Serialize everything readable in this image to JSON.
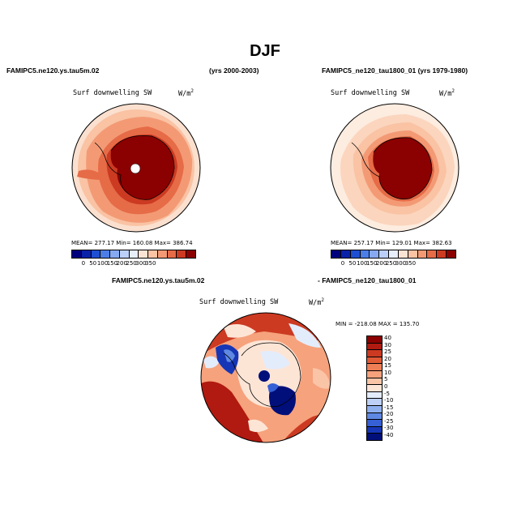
{
  "page": {
    "title": "DJF"
  },
  "left_panel": {
    "case_name": "FAMIPC5.ne120.ys.tau5m.02",
    "years": "(yrs 2000-2003)",
    "variable": "Surf downwelling SW",
    "units": "W/m",
    "units_exp": "2",
    "stats": "MEAN= 277.17   Min= 160.08   Max= 386.74",
    "colorbar_ticks": [
      "0",
      "50",
      "100",
      "150",
      "200",
      "250",
      "300",
      "350"
    ]
  },
  "right_panel": {
    "case_name": "FAMIPC5_ne120_tau1800_01 (yrs 1979-1980)",
    "variable": "Surf downwelling SW",
    "units": "W/m",
    "units_exp": "2",
    "stats": "MEAN= 257.17   Min= 129.01   Max= 382.63",
    "colorbar_ticks": [
      "0",
      "50",
      "100",
      "150",
      "200",
      "250",
      "300",
      "350"
    ]
  },
  "diff_panel": {
    "case_a": "FAMIPC5.ne120.ys.tau5m.02",
    "case_b": "- FAMIPC5_ne120_tau1800_01",
    "variable": "Surf downwelling SW",
    "units": "W/m",
    "units_exp": "2",
    "stats": "MIN = -218.08  MAX = 135.70",
    "colorbar_ticks": [
      "40",
      "30",
      "25",
      "20",
      "15",
      "10",
      "5",
      "0",
      "-5",
      "-10",
      "-15",
      "-20",
      "-25",
      "-30",
      "-40"
    ]
  },
  "colors": {
    "abs_scale": [
      "#00007f",
      "#0a22a8",
      "#1f4fd1",
      "#4d7ee8",
      "#86a9f2",
      "#bcd0f7",
      "#e7eefc",
      "#fbe3d3",
      "#f9c3a4",
      "#f39a75",
      "#e66b47",
      "#cc3a22",
      "#8b0000"
    ],
    "diff_scale": [
      "#8b0000",
      "#b01a10",
      "#cc3a22",
      "#e05a36",
      "#ee7e55",
      "#f6a27c",
      "#fac4a7",
      "#fde5d6",
      "#e3ecfb",
      "#bdd0f6",
      "#8fb0ee",
      "#5f88e3",
      "#3560d6",
      "#1636b6",
      "#000f7a"
    ]
  }
}
